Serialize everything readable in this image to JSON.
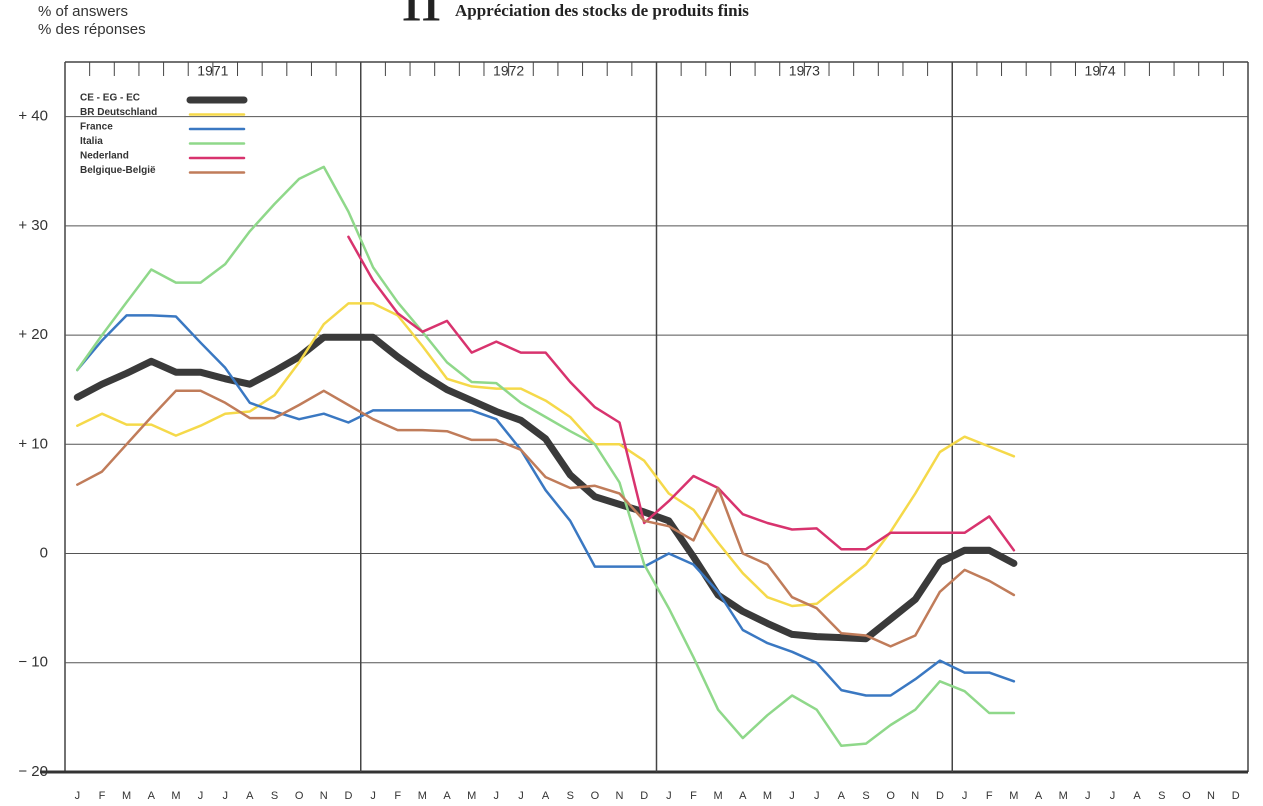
{
  "chart_data": {
    "type": "line",
    "title_number": "11",
    "title": "Appréciation des stocks de produits finis",
    "ylabel": [
      "% of answers",
      "% des réponses"
    ],
    "year_labels": [
      "1971",
      "1972",
      "1973",
      "1974"
    ],
    "categories": [
      "J",
      "F",
      "M",
      "A",
      "M",
      "J",
      "J",
      "A",
      "S",
      "O",
      "N",
      "D",
      "J",
      "F",
      "M",
      "A",
      "M",
      "J",
      "J",
      "A",
      "S",
      "O",
      "N",
      "D",
      "J",
      "F",
      "M",
      "A",
      "M",
      "J",
      "J",
      "A",
      "S",
      "O",
      "N",
      "D",
      "J",
      "F",
      "M",
      "A",
      "M",
      "J",
      "J",
      "A",
      "S",
      "O",
      "N",
      "D"
    ],
    "ylim": [
      -20,
      45
    ],
    "yticks": [
      {
        "value": 40,
        "label": "+ 40"
      },
      {
        "value": 30,
        "label": "+ 30"
      },
      {
        "value": 20,
        "label": "+ 20"
      },
      {
        "value": 10,
        "label": "+ 10"
      },
      0,
      {
        "value": -10,
        "label": "− 10"
      },
      {
        "value": -20,
        "label": "− 20"
      }
    ],
    "grid": true,
    "legend": "upper left",
    "series": [
      {
        "name": "CE - EG - EC",
        "color": "#3a3a3a",
        "values": [
          14.3,
          15.5,
          16.5,
          17.6,
          16.6,
          16.6,
          16.0,
          15.5,
          16.7,
          18.0,
          19.8,
          19.8,
          19.8,
          18.0,
          16.4,
          15.0,
          14.0,
          13.0,
          12.2,
          10.5,
          7.2,
          5.2,
          4.5,
          3.8,
          3.0,
          -0.3,
          -3.8,
          -5.3,
          -6.4,
          -7.4,
          -7.6,
          -7.7,
          -7.8,
          -6.0,
          -4.2,
          -0.8,
          0.3,
          0.3,
          -0.9,
          null,
          null,
          null,
          null,
          null,
          null,
          null,
          null,
          null
        ]
      },
      {
        "name": "BR Deutschland",
        "color": "#f5d94a",
        "values": [
          11.7,
          12.8,
          11.8,
          11.8,
          10.8,
          11.7,
          12.8,
          13.0,
          14.5,
          17.5,
          21.0,
          22.9,
          22.9,
          21.8,
          19.0,
          16.0,
          15.3,
          15.1,
          15.1,
          14.0,
          12.5,
          10.0,
          10.0,
          8.5,
          5.5,
          4.0,
          1.0,
          -1.8,
          -4.0,
          -4.8,
          -4.6,
          -2.8,
          -1.0,
          2.0,
          5.5,
          9.3,
          10.7,
          9.8,
          8.9,
          null,
          null,
          null,
          null,
          null,
          null,
          null,
          null,
          null
        ]
      },
      {
        "name": "France",
        "color": "#3a78c2",
        "values": [
          16.8,
          19.5,
          21.8,
          21.8,
          21.7,
          19.3,
          17.0,
          13.8,
          13.0,
          12.3,
          12.8,
          12.0,
          13.1,
          13.1,
          13.1,
          13.1,
          13.1,
          12.3,
          9.5,
          5.8,
          3.0,
          -1.2,
          -1.2,
          -1.2,
          0.0,
          -1.0,
          -3.5,
          -7.0,
          -8.2,
          -9.0,
          -10.0,
          -12.5,
          -13.0,
          -13.0,
          -11.5,
          -9.8,
          -10.9,
          -10.9,
          -11.7,
          null,
          null,
          null,
          null,
          null,
          null,
          null,
          null,
          null
        ]
      },
      {
        "name": "Italia",
        "color": "#8fd88a",
        "values": [
          16.8,
          20.0,
          23.0,
          26.0,
          24.8,
          24.8,
          26.5,
          29.5,
          32.0,
          34.3,
          35.4,
          31.3,
          26.2,
          23.0,
          20.3,
          17.5,
          15.7,
          15.6,
          13.8,
          12.5,
          11.2,
          10.0,
          6.5,
          -1.0,
          -5.0,
          -9.5,
          -14.3,
          -16.9,
          -14.8,
          -13.0,
          -14.3,
          -17.6,
          -17.4,
          -15.7,
          -14.3,
          -11.7,
          -12.6,
          -14.6,
          -14.6,
          null,
          null,
          null,
          null,
          null,
          null,
          null,
          null,
          null
        ]
      },
      {
        "name": "Nederland",
        "color": "#d8336e",
        "values": [
          null,
          null,
          null,
          null,
          null,
          null,
          null,
          null,
          null,
          null,
          null,
          29.0,
          25.0,
          22.0,
          20.3,
          21.3,
          18.4,
          19.4,
          18.4,
          18.4,
          15.7,
          13.4,
          12.0,
          2.8,
          4.8,
          7.1,
          6.0,
          3.6,
          2.8,
          2.2,
          2.3,
          0.4,
          0.4,
          1.9,
          1.9,
          1.9,
          1.9,
          3.4,
          0.3,
          null,
          null,
          null,
          null,
          null,
          null,
          null,
          null,
          null
        ]
      },
      {
        "name": "Belgique-België",
        "color": "#c07c5a",
        "values": [
          6.3,
          7.5,
          10.0,
          12.5,
          14.9,
          14.9,
          13.8,
          12.4,
          12.4,
          13.6,
          14.9,
          13.6,
          12.3,
          11.3,
          11.3,
          11.2,
          10.4,
          10.4,
          9.5,
          7.0,
          6.0,
          6.2,
          5.5,
          3.0,
          2.5,
          1.2,
          6.0,
          0.0,
          -1.0,
          -4.0,
          -5.0,
          -7.3,
          -7.5,
          -8.5,
          -7.5,
          -3.5,
          -1.5,
          -2.5,
          -3.8,
          null,
          null,
          null,
          null,
          null,
          null,
          null,
          null,
          null
        ]
      }
    ]
  }
}
